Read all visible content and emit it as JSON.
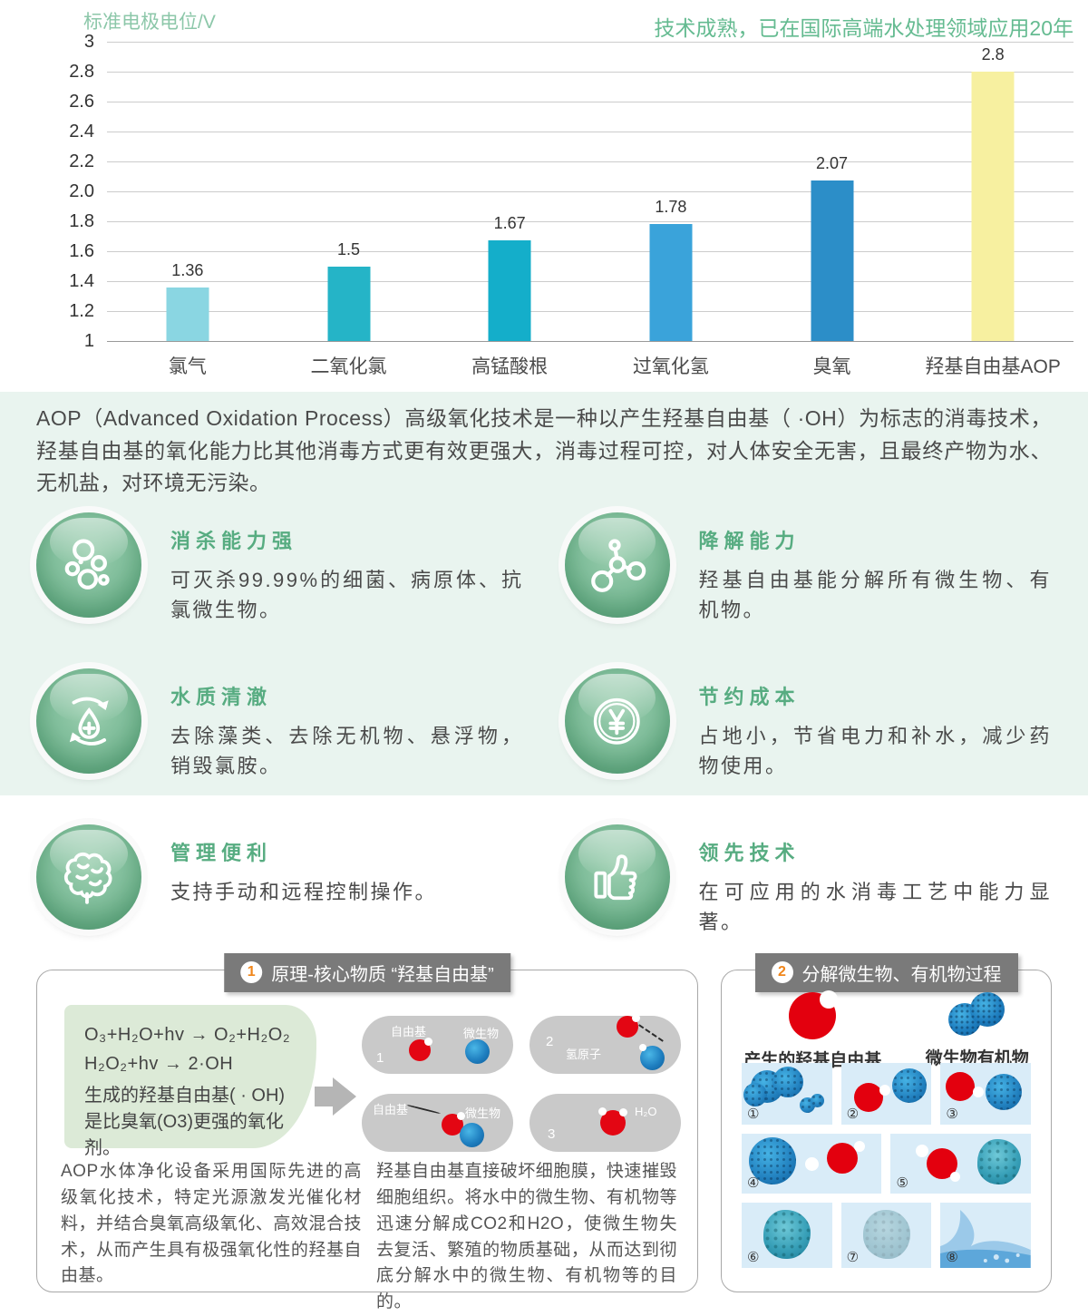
{
  "chart_data": {
    "type": "bar",
    "title": "标准电极电位/V",
    "headline": "技术成熟，已在国际高端水处理领域应用20年",
    "categories": [
      "氯气",
      "二氧化氯",
      "高锰酸根",
      "过氧化氢",
      "臭氧",
      "羟基自由基AOP"
    ],
    "values": [
      1.36,
      1.5,
      1.67,
      1.78,
      2.07,
      2.8
    ],
    "value_labels": [
      "1.36",
      "1.5",
      "1.67",
      "1.78",
      "2.07",
      "2.8"
    ],
    "bar_colors": [
      "#8ad6e2",
      "#25b4c7",
      "#14aeca",
      "#3aa3da",
      "#2c8ec8",
      "#f7f0a0"
    ],
    "ylim": [
      1,
      3
    ],
    "yticks": [
      "3",
      "2.8",
      "2.6",
      "2.4",
      "2.2",
      "2.0",
      "1.8",
      "1.6",
      "1.4",
      "1.2",
      "1"
    ],
    "ytick_values": [
      3,
      2.8,
      2.6,
      2.4,
      2.2,
      2.0,
      1.8,
      1.6,
      1.4,
      1.2,
      1
    ],
    "grid": true,
    "xlabel": "",
    "ylabel": "标准电极电位/V",
    "legend_position": "none"
  },
  "intro": {
    "text": "AOP（Advanced Oxidation Process）高级氧化技术是一种以产生羟基自由基（ ·OH）为标志的消毒技术，羟基自由基的氧化能力比其他消毒方式更有效更强大，消毒过程可控，对人体安全无害，且最终产物为水、无机盐，对环境无污染。"
  },
  "features": [
    {
      "icon": "bubbles-icon",
      "title": "消杀能力强",
      "text": "可灭杀99.99%的细菌、病原体、抗氯微生物。"
    },
    {
      "icon": "molecule-icon",
      "title": "降解能力",
      "text": "羟基自由基能分解所有微生物、有机物。"
    },
    {
      "icon": "water-cycle-icon",
      "title": "水质清澈",
      "text": "去除藻类、去除无机物、悬浮物，销毁氯胺。"
    },
    {
      "icon": "yuan-coin-icon",
      "title": "节约成本",
      "text": "占地小，节省电力和补水，减少药物使用。"
    },
    {
      "icon": "brain-icon",
      "title": "管理便利",
      "text": "支持手动和远程控制操作。"
    },
    {
      "icon": "thumbs-up-icon",
      "title": "领先技术",
      "text": "在可应用的水消毒工艺中能力显著。"
    }
  ],
  "panel1": {
    "number": "1",
    "title": "原理-核心物质 “羟基自由基”",
    "formula_line1": "O₃+H₂O+hv  →  O₂+H₂O₂",
    "formula_line2": "H₂O₂+hv  →  2·OH",
    "formula_note": "生成的羟基自由基( · OH)是比臭氧(O3)更强的氧化剂。",
    "capsules": [
      {
        "number": "1",
        "label_left": "自由基",
        "label_right": "微生物"
      },
      {
        "number": "2",
        "label_left": "氢原子"
      },
      {
        "number": "",
        "label_left": "自由基",
        "label_right": "微生物"
      },
      {
        "number": "3",
        "label_right": "H₂O"
      }
    ],
    "para1": "AOP水体净化设备采用国际先进的高级氧化技术，特定光源激发光催化材料，并结合臭氧高级氧化、高效混合技术，从而产生具有极强氧化性的羟基自由基。",
    "para2": "羟基自由基直接破坏细胞膜，快速摧毁细胞组织。将水中的微生物、有机物等迅速分解成CO2和H2O，使微生物失去复活、繁殖的物质基础，从而达到彻底分解水中的微生物、有机物等的目的。"
  },
  "panel2": {
    "number": "2",
    "title": "分解微生物、有机物过程",
    "legend": [
      {
        "label": "产生的羟基自由基"
      },
      {
        "label": "微生物有机物"
      }
    ],
    "steps": [
      "①",
      "②",
      "③",
      "④",
      "⑤",
      "⑥",
      "⑦",
      "⑧"
    ]
  },
  "colors": {
    "accent_green": "#65bb91",
    "mint_background": "#e9f4ef",
    "highlight_bar": "#f7f0a0",
    "radical_red": "#e30613",
    "microbe_blue": "#1f7fc0",
    "panel_header_gray": "#7a7a7a"
  }
}
